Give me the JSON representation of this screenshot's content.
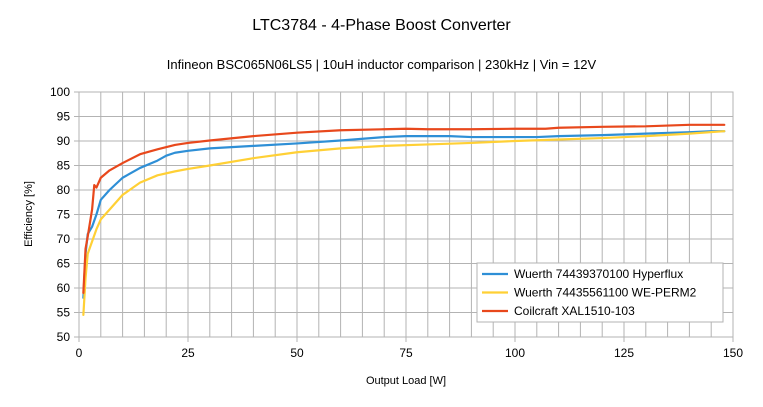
{
  "chart_data": {
    "type": "line",
    "title": "LTC3784 - 4-Phase Boost Converter",
    "subtitle": "Infineon BSC065N06LS5 | 10uH inductor comparison | 230kHz | Vin = 12V",
    "xlabel": "Output Load [W]",
    "ylabel": "Efficiency [%]",
    "xlim": [
      0,
      150
    ],
    "ylim": [
      50,
      100
    ],
    "xticks": [
      0,
      25,
      50,
      75,
      100,
      125,
      150
    ],
    "yticks": [
      50,
      55,
      60,
      65,
      70,
      75,
      80,
      85,
      90,
      95,
      100
    ],
    "grid": true,
    "legend_position": "bottom-right",
    "series": [
      {
        "name": "Wuerth 74439370100 Hyperflux",
        "color": "#2e8fd6",
        "x": [
          1,
          1.5,
          2,
          3,
          4,
          5,
          7,
          10,
          14,
          18,
          20,
          22,
          25,
          30,
          40,
          50,
          60,
          70,
          75,
          80,
          85,
          90,
          100,
          105,
          110,
          120,
          130,
          140,
          145,
          148
        ],
        "y": [
          58,
          67,
          71,
          72.5,
          75,
          78,
          80,
          82.5,
          84.5,
          86,
          87,
          87.6,
          88,
          88.5,
          89,
          89.5,
          90.1,
          90.8,
          91,
          91,
          91,
          90.8,
          90.8,
          90.8,
          91,
          91.2,
          91.5,
          91.8,
          92,
          92
        ]
      },
      {
        "name": "Wuerth 74435561100 WE-PERM2",
        "color": "#ffd035",
        "x": [
          1,
          1.5,
          2,
          3,
          4,
          5,
          7,
          10,
          14,
          18,
          22,
          25,
          30,
          40,
          50,
          60,
          70,
          80,
          90,
          100,
          110,
          120,
          130,
          140,
          148
        ],
        "y": [
          54.5,
          62,
          67,
          69.5,
          72,
          74,
          76,
          79,
          81.5,
          83,
          83.8,
          84.3,
          85,
          86.5,
          87.7,
          88.5,
          89,
          89.3,
          89.6,
          90,
          90.3,
          90.6,
          91,
          91.5,
          92
        ]
      },
      {
        "name": "Coilcraft XAL1510-103",
        "color": "#e8481c",
        "x": [
          1,
          1.5,
          2,
          3,
          3.5,
          4,
          5,
          7,
          10,
          14,
          18,
          22,
          25,
          30,
          40,
          50,
          60,
          70,
          75,
          80,
          90,
          100,
          107,
          110,
          120,
          130,
          140,
          148
        ],
        "y": [
          59,
          68,
          70.5,
          76,
          81,
          80.5,
          82.5,
          84,
          85.5,
          87.3,
          88.3,
          89.2,
          89.6,
          90.1,
          91,
          91.7,
          92.2,
          92.4,
          92.5,
          92.4,
          92.4,
          92.5,
          92.5,
          92.7,
          92.9,
          93,
          93.3,
          93.3
        ]
      }
    ]
  }
}
